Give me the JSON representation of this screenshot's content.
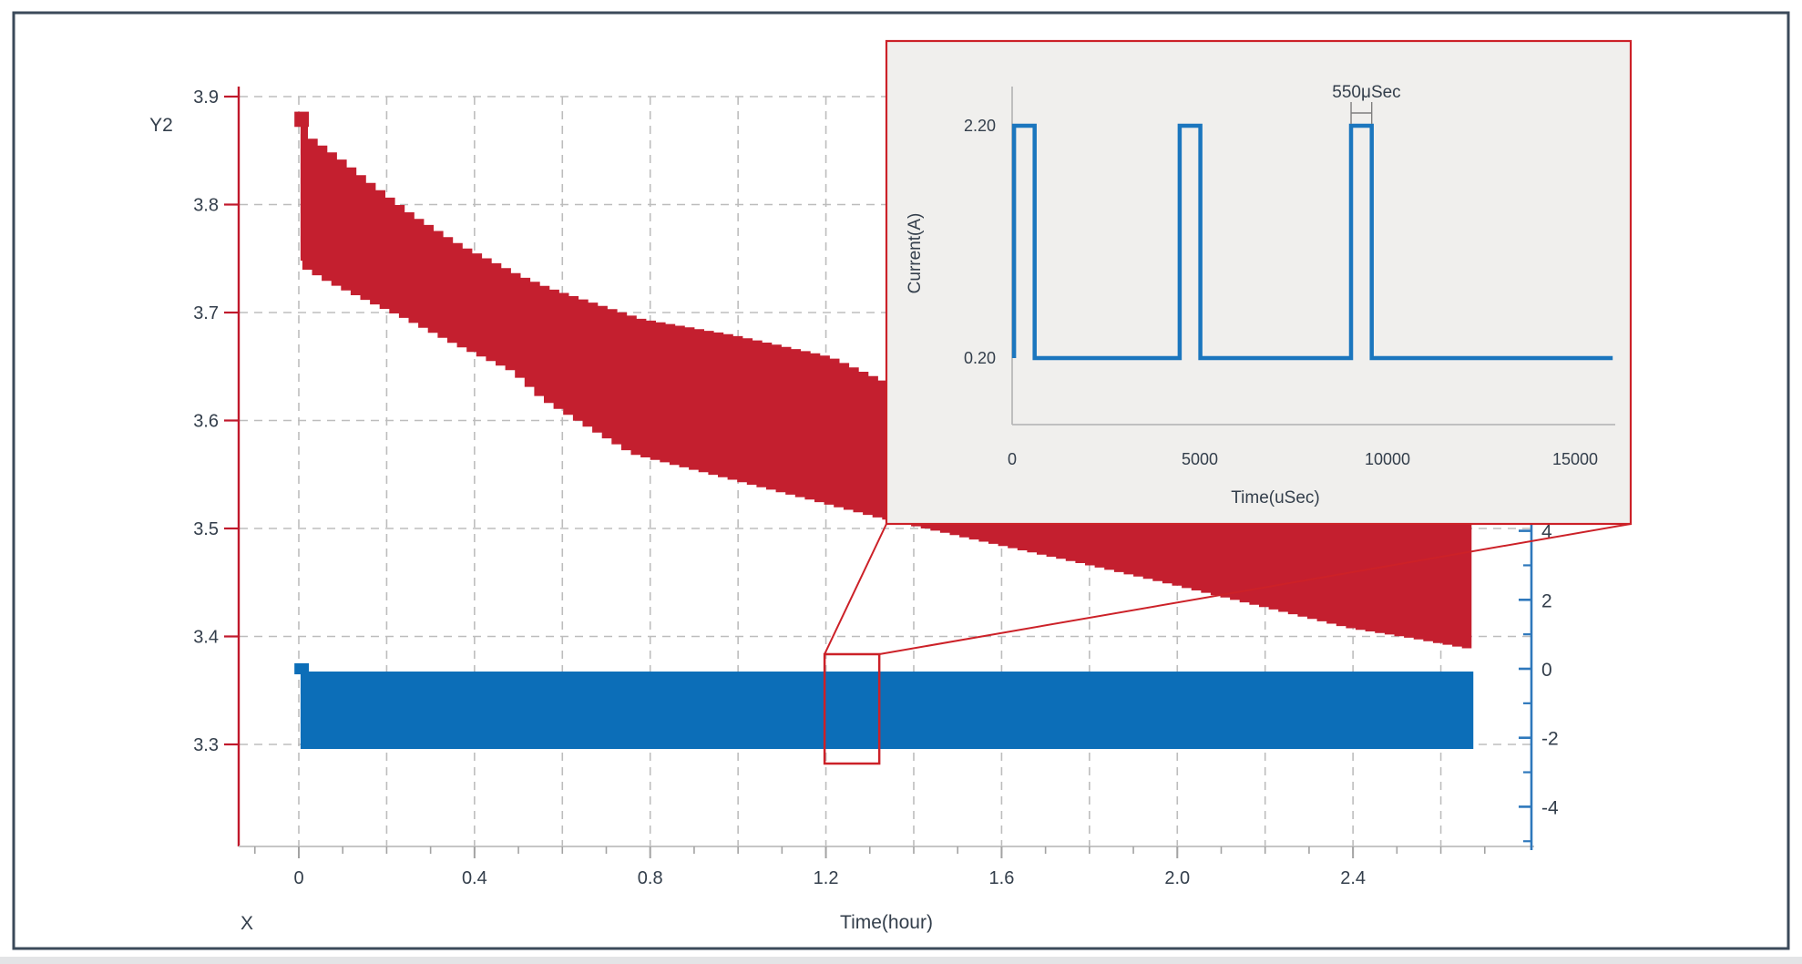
{
  "frame": {
    "border_color": "#3b4a5a",
    "bottom_strip_color": "#e3e4e6"
  },
  "colors": {
    "red_band": "#c41f2f",
    "red_axis": "#c0182b",
    "red_callout": "#cc2128",
    "blue_band": "#0c6eb8",
    "blue_waveform": "#1b76be",
    "blue_axis": "#2e78bc",
    "grid": "#bdbdbd",
    "bottom_axis": "#c6c6c6",
    "bottom_tick": "#a3a3a3",
    "inset_bg": "#f0efed",
    "inset_axis": "#b9b9b9",
    "bracket": "#7f7f7f",
    "text": "#333e4b"
  },
  "main_chart": {
    "y2_axis_label": "Y2",
    "x_axis_label_short": "X",
    "x_axis_title": "Time(hour)",
    "left_axis": {
      "ticks": [
        {
          "label": "3.9",
          "value": 3.9
        },
        {
          "label": "3.8",
          "value": 3.8
        },
        {
          "label": "3.7",
          "value": 3.7
        },
        {
          "label": "3.6",
          "value": 3.6
        },
        {
          "label": "3.5",
          "value": 3.5
        },
        {
          "label": "3.4",
          "value": 3.4
        },
        {
          "label": "3.3",
          "value": 3.3
        }
      ]
    },
    "bottom_axis": {
      "major_ticks": [
        {
          "label": "0",
          "value": 0
        },
        {
          "label": "0.4",
          "value": 0.4
        },
        {
          "label": "0.8",
          "value": 0.8
        },
        {
          "label": "1.2",
          "value": 1.2
        },
        {
          "label": "1.6",
          "value": 1.6
        },
        {
          "label": "2.0",
          "value": 2.0
        },
        {
          "label": "2.4",
          "value": 2.4
        }
      ],
      "minor_start": -0.1,
      "minor_end": 2.7,
      "minor_step": 0.1
    },
    "right_axis": {
      "major_ticks": [
        {
          "label": "4",
          "value": 4
        },
        {
          "label": "2",
          "value": 2
        },
        {
          "label": "0",
          "value": 0
        },
        {
          "label": "-2",
          "value": -2
        },
        {
          "label": "-4",
          "value": -4
        }
      ],
      "minor_values": [
        3,
        1,
        -1,
        -3,
        -5
      ]
    },
    "grid": {
      "h_values": [
        3.9,
        3.8,
        3.7,
        3.6,
        3.5,
        3.4,
        3.3
      ],
      "v_hours": [
        0,
        0.2,
        0.4,
        0.6,
        0.8,
        1.0,
        1.2,
        1.4,
        1.6,
        1.8,
        2.0,
        2.2,
        2.4,
        2.6
      ]
    }
  },
  "inset": {
    "y_axis_title": "Current(A)",
    "x_axis_title": "Time(uSec)",
    "y_ticks": [
      {
        "label": "2.20",
        "value": 2.2
      },
      {
        "label": "0.20",
        "value": 0.2
      }
    ],
    "x_ticks": [
      {
        "label": "0",
        "value": 0
      },
      {
        "label": "5000",
        "value": 5000
      },
      {
        "label": "10000",
        "value": 10000
      },
      {
        "label": "15000",
        "value": 15000
      }
    ],
    "annotation": "550μSec"
  },
  "chart_data": [
    {
      "type": "area",
      "name": "battery-voltage-band",
      "axis": "left",
      "xlabel": "Time(hour)",
      "ylabel": "Y2 (Voltage, V)",
      "xlim": [
        -0.14,
        2.8
      ],
      "ylim_labeled": [
        3.3,
        3.9
      ],
      "top_edge_anchors": {
        "hours": [
          0.021,
          0.08,
          0.15,
          0.25,
          0.36,
          0.5,
          0.565,
          0.77,
          0.98,
          1.2,
          1.33,
          1.6,
          1.8,
          2.0,
          2.2,
          2.4,
          2.55,
          2.67
        ],
        "volts": [
          3.861,
          3.844,
          3.821,
          3.79,
          3.762,
          3.733,
          3.722,
          3.694,
          3.679,
          3.659,
          3.635,
          3.604,
          3.582,
          3.56,
          3.538,
          3.52,
          3.511,
          3.504
        ]
      },
      "bottom_edge_anchors": {
        "hours": [
          0.004,
          0.02,
          0.08,
          0.15,
          0.25,
          0.36,
          0.5,
          0.565,
          0.77,
          0.98,
          1.2,
          1.33,
          1.6,
          1.8,
          2.0,
          2.2,
          2.4,
          2.55,
          2.67
        ],
        "volts": [
          3.75,
          3.742,
          3.728,
          3.714,
          3.695,
          3.672,
          3.645,
          3.62,
          3.569,
          3.547,
          3.524,
          3.51,
          3.485,
          3.467,
          3.448,
          3.428,
          3.408,
          3.398,
          3.389
        ]
      },
      "start_cap": {
        "h0": -0.01,
        "h1": 0.023,
        "v_top": 3.886,
        "v_bot": 3.877
      }
    },
    {
      "type": "area",
      "name": "pulse-current-band",
      "axis": "right",
      "x_hours": [
        0.004,
        2.674
      ],
      "top_A": -0.08,
      "bottom_A": -2.325,
      "start_step": {
        "h0": -0.01,
        "h1": 0.023,
        "top_A": 0.16,
        "bottom_A": -0.16
      }
    },
    {
      "type": "line",
      "name": "inset-current-pulses",
      "xlabel": "Time(uSec)",
      "ylabel": "Current(A)",
      "xlim": [
        0,
        16000
      ],
      "low_A": 0.2,
      "high_A": 2.2,
      "pulse_width_us": 550,
      "pulse_starts_us": [
        50,
        4464,
        9030
      ],
      "trace_end_us": 16000,
      "annotated_pulse_index": 2
    }
  ],
  "callout": {
    "x1_hours": 1.197,
    "x2_hours": 1.3215,
    "top_A": 0.423,
    "bottom_A": -2.748
  }
}
